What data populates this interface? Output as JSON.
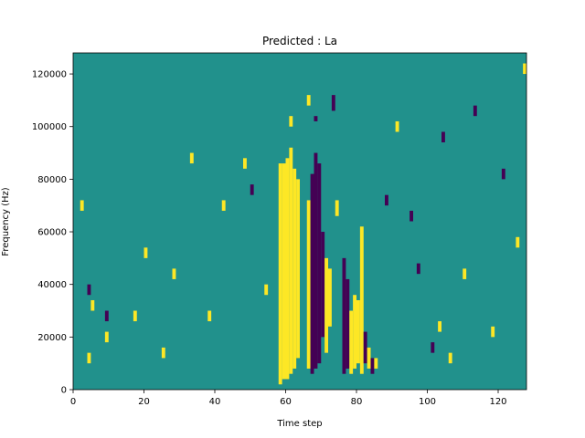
{
  "chart_data": {
    "type": "heatmap",
    "title": "Predicted : La",
    "xlabel": "Time step",
    "ylabel": "Frequency (Hz)",
    "xlim": [
      0,
      128
    ],
    "ylim": [
      0,
      128000
    ],
    "x_ticks": [
      0,
      20,
      40,
      60,
      80,
      100,
      120
    ],
    "y_ticks": [
      0,
      20000,
      40000,
      60000,
      80000,
      100000,
      120000
    ],
    "x_tick_labels": [
      "0",
      "20",
      "40",
      "60",
      "80",
      "100",
      "120"
    ],
    "y_tick_labels": [
      "0",
      "20000",
      "40000",
      "60000",
      "80000",
      "100000",
      "120000"
    ],
    "colormap": "viridis",
    "value_colors": {
      "-1": "#440154",
      "0": "#21918c",
      "1": "#fde725"
    },
    "background_value": 0,
    "time_steps": 128,
    "frequency_bins": 128,
    "bin_hz": 1000,
    "cells": [
      {
        "t": 58,
        "f_from": 2000,
        "f_to": 86000,
        "value": 1
      },
      {
        "t": 59,
        "f_from": 4000,
        "f_to": 86000,
        "value": 1
      },
      {
        "t": 60,
        "f_from": 4000,
        "f_to": 88000,
        "value": 1
      },
      {
        "t": 61,
        "f_from": 6000,
        "f_to": 92000,
        "value": 1
      },
      {
        "t": 62,
        "f_from": 8000,
        "f_to": 84000,
        "value": 1
      },
      {
        "t": 63,
        "f_from": 12000,
        "f_to": 80000,
        "value": 1
      },
      {
        "t": 66,
        "f_from": 8000,
        "f_to": 72000,
        "value": 1
      },
      {
        "t": 67,
        "f_from": 6000,
        "f_to": 82000,
        "value": -1
      },
      {
        "t": 68,
        "f_from": 8000,
        "f_to": 90000,
        "value": -1
      },
      {
        "t": 69,
        "f_from": 10000,
        "f_to": 86000,
        "value": -1
      },
      {
        "t": 70,
        "f_from": 20000,
        "f_to": 60000,
        "value": -1
      },
      {
        "t": 71,
        "f_from": 14000,
        "f_to": 50000,
        "value": 1
      },
      {
        "t": 72,
        "f_from": 24000,
        "f_to": 46000,
        "value": 1
      },
      {
        "t": 76,
        "f_from": 6000,
        "f_to": 50000,
        "value": -1
      },
      {
        "t": 77,
        "f_from": 8000,
        "f_to": 42000,
        "value": -1
      },
      {
        "t": 78,
        "f_from": 6000,
        "f_to": 30000,
        "value": 1
      },
      {
        "t": 79,
        "f_from": 8000,
        "f_to": 36000,
        "value": 1
      },
      {
        "t": 80,
        "f_from": 10000,
        "f_to": 34000,
        "value": 1
      },
      {
        "t": 81,
        "f_from": 6000,
        "f_to": 62000,
        "value": 1
      },
      {
        "t": 82,
        "f_from": 10000,
        "f_to": 22000,
        "value": -1
      },
      {
        "t": 83,
        "f_from": 8000,
        "f_to": 16000,
        "value": 1
      },
      {
        "t": 84,
        "f_from": 6000,
        "f_to": 12000,
        "value": -1
      },
      {
        "t": 85,
        "f_from": 8000,
        "f_to": 12000,
        "value": 1
      },
      {
        "t": 61,
        "f_from": 100000,
        "f_to": 104000,
        "value": 1
      },
      {
        "t": 66,
        "f_from": 108000,
        "f_to": 112000,
        "value": 1
      },
      {
        "t": 68,
        "f_from": 102000,
        "f_to": 104000,
        "value": -1
      },
      {
        "t": 73,
        "f_from": 106000,
        "f_to": 112000,
        "value": -1
      },
      {
        "t": 74,
        "f_from": 66000,
        "f_to": 72000,
        "value": 1
      },
      {
        "t": 2,
        "f_from": 68000,
        "f_to": 72000,
        "value": 1
      },
      {
        "t": 4,
        "f_from": 36000,
        "f_to": 40000,
        "value": -1
      },
      {
        "t": 4,
        "f_from": 10000,
        "f_to": 14000,
        "value": 1
      },
      {
        "t": 5,
        "f_from": 30000,
        "f_to": 34000,
        "value": 1
      },
      {
        "t": 9,
        "f_from": 26000,
        "f_to": 30000,
        "value": -1
      },
      {
        "t": 9,
        "f_from": 18000,
        "f_to": 22000,
        "value": 1
      },
      {
        "t": 17,
        "f_from": 26000,
        "f_to": 30000,
        "value": 1
      },
      {
        "t": 20,
        "f_from": 50000,
        "f_to": 54000,
        "value": 1
      },
      {
        "t": 25,
        "f_from": 12000,
        "f_to": 16000,
        "value": 1
      },
      {
        "t": 28,
        "f_from": 42000,
        "f_to": 46000,
        "value": 1
      },
      {
        "t": 33,
        "f_from": 86000,
        "f_to": 90000,
        "value": 1
      },
      {
        "t": 38,
        "f_from": 26000,
        "f_to": 30000,
        "value": 1
      },
      {
        "t": 42,
        "f_from": 68000,
        "f_to": 72000,
        "value": 1
      },
      {
        "t": 48,
        "f_from": 84000,
        "f_to": 88000,
        "value": 1
      },
      {
        "t": 50,
        "f_from": 74000,
        "f_to": 78000,
        "value": -1
      },
      {
        "t": 54,
        "f_from": 36000,
        "f_to": 40000,
        "value": 1
      },
      {
        "t": 88,
        "f_from": 70000,
        "f_to": 74000,
        "value": -1
      },
      {
        "t": 91,
        "f_from": 98000,
        "f_to": 102000,
        "value": 1
      },
      {
        "t": 95,
        "f_from": 64000,
        "f_to": 68000,
        "value": -1
      },
      {
        "t": 97,
        "f_from": 44000,
        "f_to": 48000,
        "value": -1
      },
      {
        "t": 101,
        "f_from": 14000,
        "f_to": 18000,
        "value": -1
      },
      {
        "t": 103,
        "f_from": 22000,
        "f_to": 26000,
        "value": 1
      },
      {
        "t": 104,
        "f_from": 94000,
        "f_to": 98000,
        "value": -1
      },
      {
        "t": 106,
        "f_from": 10000,
        "f_to": 14000,
        "value": 1
      },
      {
        "t": 110,
        "f_from": 42000,
        "f_to": 46000,
        "value": 1
      },
      {
        "t": 113,
        "f_from": 104000,
        "f_to": 108000,
        "value": -1
      },
      {
        "t": 118,
        "f_from": 20000,
        "f_to": 24000,
        "value": 1
      },
      {
        "t": 121,
        "f_from": 80000,
        "f_to": 84000,
        "value": -1
      },
      {
        "t": 125,
        "f_from": 54000,
        "f_to": 58000,
        "value": 1
      },
      {
        "t": 127,
        "f_from": 120000,
        "f_to": 124000,
        "value": 1
      }
    ]
  }
}
